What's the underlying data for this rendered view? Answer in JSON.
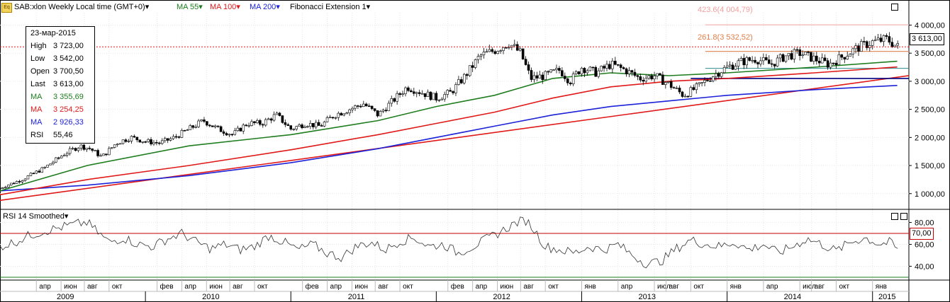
{
  "header": {
    "icon_text": "Eq",
    "symbol": "SAB:xlon Weekly Local time (GMT+0)",
    "ma55": "MA 55",
    "ma100": "MA 100",
    "ma200": "MA 200",
    "fib": "Fibonacci Extension 1",
    "dropdown": "▾"
  },
  "infobox": {
    "date": "23-мар-2015",
    "rows": [
      {
        "label": "High",
        "value": "3 723,00"
      },
      {
        "label": "Low",
        "value": "3 542,00"
      },
      {
        "label": "Open",
        "value": "3 700,50"
      },
      {
        "label": "Last",
        "value": "3 613,00"
      },
      {
        "label": "MA",
        "value": "3 355,69"
      },
      {
        "label": "MA",
        "value": "3 254,25"
      },
      {
        "label": "MA",
        "value": "2 926,33"
      },
      {
        "label": "RSI",
        "value": "55,46"
      }
    ]
  },
  "fib_labels": {
    "top": "423.6(4 004,79)",
    "mid": "261.8(3 532,52)"
  },
  "price_tag": "3 613,00",
  "rsi_panel": {
    "title": "RSI 14 Smoothed",
    "level_tag": "70,00"
  },
  "colors": {
    "ma55": "#1e7d1e",
    "ma100": "#e01818",
    "ma200": "#1c22d8",
    "fib_top": "#f4b4b4",
    "fib_mid": "#e09060",
    "price_tag_bg": "#ffffff",
    "level_tag_bg": "#ffffff"
  },
  "chart_data": [
    {
      "type": "candlestick",
      "title": "SAB:xlon Weekly",
      "y_ticks": [
        "1 000,00",
        "1 500,00",
        "2 000,00",
        "2 500,00",
        "3 000,00",
        "3 500,00",
        "4 000,00"
      ],
      "y_tick_values": [
        1000,
        1500,
        2000,
        2500,
        3000,
        3500,
        4000
      ],
      "ylim": [
        720,
        4220
      ],
      "x_months": [
        "апр",
        "июн",
        "авг",
        "окт",
        "фев",
        "апр",
        "июн",
        "авг",
        "окт",
        "фев",
        "апр",
        "июн",
        "авг",
        "окт",
        "фев",
        "апр",
        "июн",
        "авг",
        "окт",
        "янв",
        "апр",
        "июл",
        "авг",
        "окт",
        "янв",
        "апр",
        "июл",
        "авг",
        "окт",
        "янв"
      ],
      "x_month_times": [
        2009.25,
        2009.42,
        2009.58,
        2009.75,
        2010.08,
        2010.25,
        2010.42,
        2010.58,
        2010.75,
        2011.08,
        2011.25,
        2011.42,
        2011.58,
        2011.75,
        2012.08,
        2012.25,
        2012.42,
        2012.58,
        2012.75,
        2013.0,
        2013.25,
        2013.5,
        2013.58,
        2013.75,
        2014.0,
        2014.25,
        2014.5,
        2014.58,
        2014.75,
        2015.0
      ],
      "x_years": [
        "2009",
        "2010",
        "2011",
        "2012",
        "2013",
        "2014",
        "2015"
      ],
      "x_year_times": [
        2009.45,
        2010.45,
        2011.45,
        2012.45,
        2013.45,
        2014.45,
        2015.1
      ],
      "xlim": [
        2009.0,
        2015.25
      ],
      "price_path": [
        [
          2009.0,
          1100
        ],
        [
          2009.15,
          1250
        ],
        [
          2009.3,
          1450
        ],
        [
          2009.45,
          1720
        ],
        [
          2009.55,
          1850
        ],
        [
          2009.62,
          1800
        ],
        [
          2009.7,
          1650
        ],
        [
          2009.8,
          1900
        ],
        [
          2009.9,
          2000
        ],
        [
          2010.0,
          1930
        ],
        [
          2010.1,
          1900
        ],
        [
          2010.2,
          2000
        ],
        [
          2010.3,
          2150
        ],
        [
          2010.4,
          2300
        ],
        [
          2010.5,
          2150
        ],
        [
          2010.6,
          2050
        ],
        [
          2010.7,
          2250
        ],
        [
          2010.8,
          2250
        ],
        [
          2010.9,
          2400
        ],
        [
          2011.0,
          2150
        ],
        [
          2011.1,
          2250
        ],
        [
          2011.2,
          2200
        ],
        [
          2011.3,
          2400
        ],
        [
          2011.4,
          2500
        ],
        [
          2011.5,
          2600
        ],
        [
          2011.6,
          2400
        ],
        [
          2011.7,
          2650
        ],
        [
          2011.8,
          2900
        ],
        [
          2011.9,
          2800
        ],
        [
          2012.0,
          2700
        ],
        [
          2012.1,
          2800
        ],
        [
          2012.2,
          3100
        ],
        [
          2012.3,
          3450
        ],
        [
          2012.4,
          3550
        ],
        [
          2012.5,
          3680
        ],
        [
          2012.58,
          3500
        ],
        [
          2012.65,
          3050
        ],
        [
          2012.75,
          3100
        ],
        [
          2012.85,
          3200
        ],
        [
          2012.92,
          3000
        ],
        [
          2013.0,
          3250
        ],
        [
          2013.1,
          3150
        ],
        [
          2013.2,
          3300
        ],
        [
          2013.3,
          3200
        ],
        [
          2013.4,
          3050
        ],
        [
          2013.5,
          3100
        ],
        [
          2013.6,
          2950
        ],
        [
          2013.7,
          2750
        ],
        [
          2013.8,
          2900
        ],
        [
          2013.9,
          3100
        ],
        [
          2014.0,
          3250
        ],
        [
          2014.1,
          3350
        ],
        [
          2014.2,
          3400
        ],
        [
          2014.3,
          3300
        ],
        [
          2014.4,
          3450
        ],
        [
          2014.5,
          3500
        ],
        [
          2014.6,
          3400
        ],
        [
          2014.7,
          3300
        ],
        [
          2014.8,
          3450
        ],
        [
          2014.9,
          3600
        ],
        [
          2015.0,
          3700
        ],
        [
          2015.1,
          3750
        ],
        [
          2015.17,
          3613
        ]
      ],
      "ma55_path": [
        [
          2009.0,
          1050
        ],
        [
          2009.6,
          1500
        ],
        [
          2010.3,
          1850
        ],
        [
          2011.0,
          2050
        ],
        [
          2011.6,
          2300
        ],
        [
          2012.0,
          2550
        ],
        [
          2012.4,
          2750
        ],
        [
          2012.8,
          3050
        ],
        [
          2013.2,
          3150
        ],
        [
          2013.6,
          3100
        ],
        [
          2014.0,
          3150
        ],
        [
          2014.6,
          3250
        ],
        [
          2015.17,
          3356
        ]
      ],
      "ma100_path": [
        [
          2009.0,
          980
        ],
        [
          2009.6,
          1250
        ],
        [
          2010.3,
          1500
        ],
        [
          2011.0,
          1780
        ],
        [
          2011.6,
          2050
        ],
        [
          2012.0,
          2250
        ],
        [
          2012.4,
          2450
        ],
        [
          2012.8,
          2700
        ],
        [
          2013.2,
          2900
        ],
        [
          2013.6,
          3000
        ],
        [
          2014.0,
          3050
        ],
        [
          2014.6,
          3150
        ],
        [
          2015.17,
          3254
        ]
      ],
      "ma200_path": [
        [
          2009.0,
          1050
        ],
        [
          2009.6,
          1150
        ],
        [
          2010.3,
          1320
        ],
        [
          2011.0,
          1550
        ],
        [
          2011.6,
          1800
        ],
        [
          2012.0,
          2000
        ],
        [
          2012.4,
          2200
        ],
        [
          2012.8,
          2400
        ],
        [
          2013.2,
          2550
        ],
        [
          2013.6,
          2650
        ],
        [
          2014.0,
          2750
        ],
        [
          2014.6,
          2850
        ],
        [
          2015.17,
          2926
        ]
      ],
      "series": [
        {
          "name": "MA 55",
          "last": 3355.69
        },
        {
          "name": "MA 100",
          "last": 3254.25
        },
        {
          "name": "MA 200",
          "last": 2926.33
        }
      ],
      "trendline": [
        [
          2009.0,
          880
        ],
        [
          2015.25,
          3100
        ]
      ],
      "support_line": 3050,
      "fib_levels": [
        4004.79,
        3532.52
      ],
      "last_price": 3613.0,
      "grid": true
    },
    {
      "type": "line",
      "title": "RSI 14 Smoothed",
      "y_ticks": [
        "40,00",
        "60,00",
        "80,00"
      ],
      "y_tick_values": [
        40,
        60,
        80
      ],
      "ylim": [
        28,
        92
      ],
      "level": 70,
      "rsi_path": [
        [
          2009.0,
          58
        ],
        [
          2009.1,
          62
        ],
        [
          2009.2,
          68
        ],
        [
          2009.3,
          72
        ],
        [
          2009.4,
          75
        ],
        [
          2009.5,
          78
        ],
        [
          2009.6,
          80
        ],
        [
          2009.68,
          70
        ],
        [
          2009.75,
          62
        ],
        [
          2009.85,
          66
        ],
        [
          2009.95,
          60
        ],
        [
          2010.05,
          58
        ],
        [
          2010.15,
          65
        ],
        [
          2010.25,
          70
        ],
        [
          2010.35,
          62
        ],
        [
          2010.45,
          56
        ],
        [
          2010.55,
          60
        ],
        [
          2010.65,
          55
        ],
        [
          2010.75,
          58
        ],
        [
          2010.85,
          68
        ],
        [
          2010.95,
          62
        ],
        [
          2011.05,
          55
        ],
        [
          2011.15,
          60
        ],
        [
          2011.25,
          52
        ],
        [
          2011.35,
          48
        ],
        [
          2011.45,
          58
        ],
        [
          2011.55,
          62
        ],
        [
          2011.65,
          55
        ],
        [
          2011.75,
          63
        ],
        [
          2011.85,
          66
        ],
        [
          2011.95,
          58
        ],
        [
          2012.05,
          60
        ],
        [
          2012.15,
          52
        ],
        [
          2012.25,
          58
        ],
        [
          2012.35,
          65
        ],
        [
          2012.45,
          72
        ],
        [
          2012.55,
          80
        ],
        [
          2012.62,
          82
        ],
        [
          2012.68,
          72
        ],
        [
          2012.75,
          58
        ],
        [
          2012.85,
          55
        ],
        [
          2012.95,
          52
        ],
        [
          2013.05,
          58
        ],
        [
          2013.15,
          55
        ],
        [
          2013.25,
          60
        ],
        [
          2013.35,
          50
        ],
        [
          2013.45,
          42
        ],
        [
          2013.55,
          45
        ],
        [
          2013.65,
          56
        ],
        [
          2013.75,
          64
        ],
        [
          2013.85,
          60
        ],
        [
          2013.95,
          58
        ],
        [
          2014.05,
          62
        ],
        [
          2014.15,
          55
        ],
        [
          2014.25,
          60
        ],
        [
          2014.35,
          52
        ],
        [
          2014.45,
          58
        ],
        [
          2014.55,
          65
        ],
        [
          2014.65,
          60
        ],
        [
          2014.75,
          54
        ],
        [
          2014.85,
          62
        ],
        [
          2014.95,
          66
        ],
        [
          2015.05,
          60
        ],
        [
          2015.12,
          62
        ],
        [
          2015.17,
          55.46
        ]
      ],
      "grid": true
    }
  ]
}
